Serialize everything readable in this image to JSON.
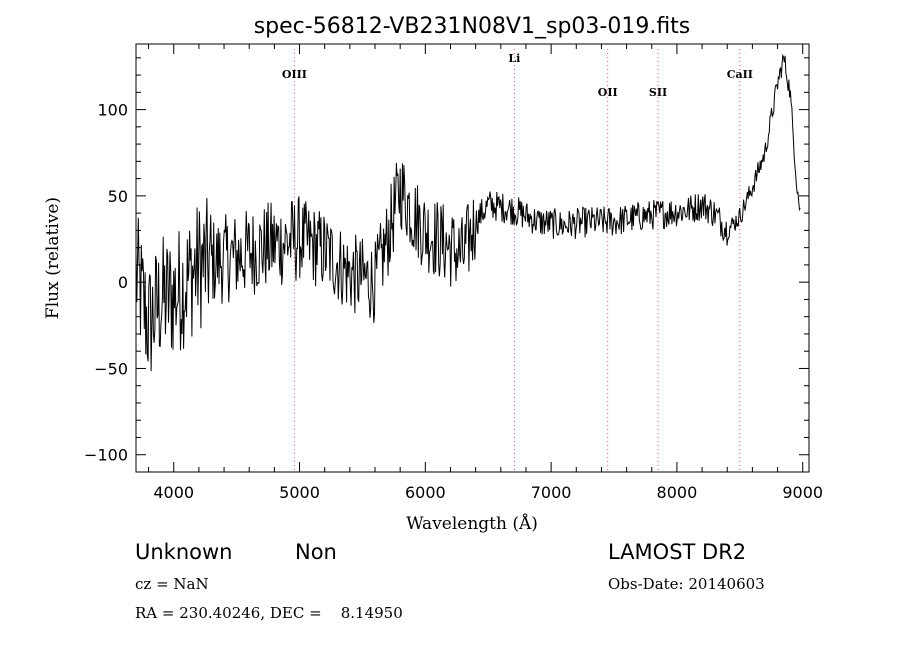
{
  "chart_data": {
    "type": "line",
    "title": "spec-56812-VB231N08V1_sp03-019.fits",
    "xlabel": "Wavelength (Å)",
    "ylabel": "Flux (relative)",
    "xlim": [
      3700,
      9050
    ],
    "ylim": [
      -110,
      138
    ],
    "x_ticks": [
      4000,
      5000,
      6000,
      7000,
      8000,
      9000
    ],
    "y_ticks": [
      -100,
      -50,
      0,
      50,
      100
    ],
    "grid": false,
    "lines": [
      {
        "name": "OIII",
        "x": 4959
      },
      {
        "name": "Li",
        "x": 6708
      },
      {
        "name": "OII",
        "x": 7450
      },
      {
        "name": "SII",
        "x": 7850
      },
      {
        "name": "CaII",
        "x": 8500
      }
    ],
    "spectrum_trend": {
      "x": [
        3700,
        3750,
        3800,
        3900,
        4000,
        4200,
        4500,
        4800,
        5000,
        5200,
        5400,
        5600,
        5700,
        5800,
        5900,
        6000,
        6200,
        6300,
        6400,
        6500,
        6700,
        6900,
        7100,
        7300,
        7500,
        7700,
        7900,
        8100,
        8200,
        8300,
        8400,
        8500,
        8600,
        8700,
        8800,
        8850,
        8900,
        8950,
        8980
      ],
      "y": [
        5,
        -10,
        -25,
        -10,
        -8,
        10,
        15,
        22,
        25,
        18,
        5,
        0,
        25,
        55,
        40,
        30,
        20,
        15,
        35,
        45,
        42,
        35,
        33,
        35,
        35,
        38,
        40,
        42,
        45,
        40,
        30,
        38,
        55,
        75,
        115,
        130,
        110,
        60,
        40
      ]
    }
  },
  "info": {
    "object_class": "Unknown",
    "subclass": "Non",
    "survey": "LAMOST DR2",
    "cz": "cz = NaN",
    "obs_date": "Obs-Date: 20140603",
    "coords": "RA = 230.40246, DEC =    8.14950"
  },
  "colors": {
    "spectrum": "#000000",
    "line_markers": "#e0507a"
  }
}
